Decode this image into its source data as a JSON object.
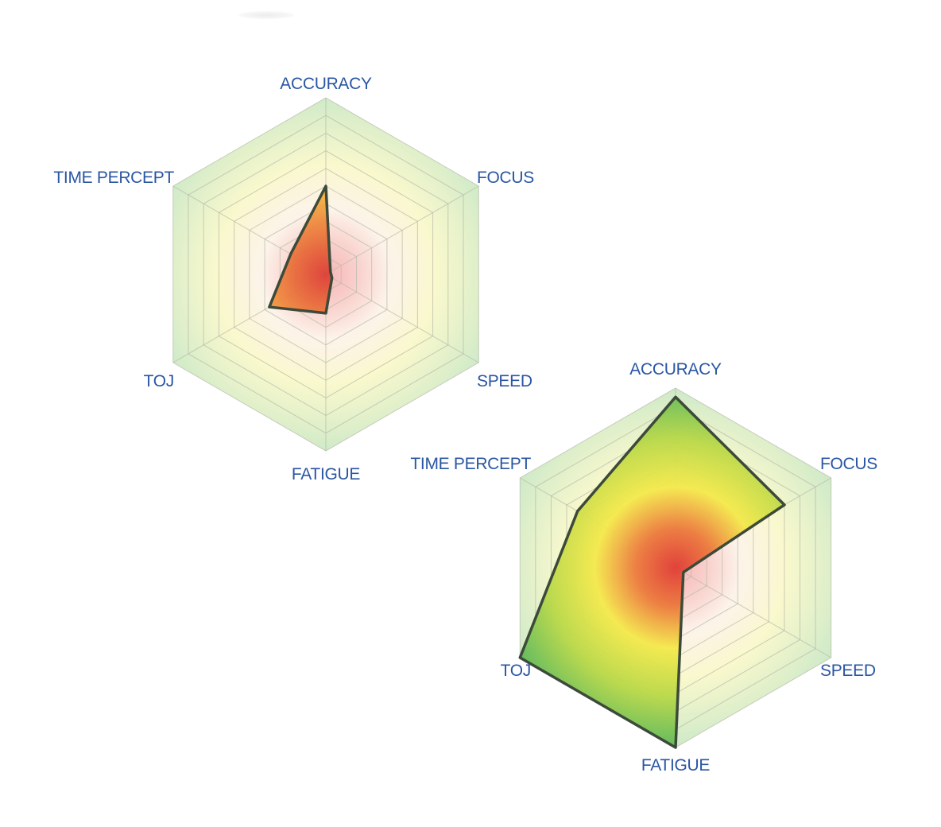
{
  "chart_data": [
    {
      "type": "radar",
      "title": "",
      "axes": [
        "ACCURACY",
        "FOCUS",
        "SPEED",
        "FATIGUE",
        "TOJ",
        "TIME PERCEPT"
      ],
      "rlim": [
        0,
        10
      ],
      "rings": 10,
      "grid": true,
      "series": [
        {
          "values": [
            5.0,
            0.3,
            0.4,
            2.2,
            3.7,
            2.3
          ]
        }
      ],
      "colors": {
        "fill_center": "#e0483a",
        "fill_mid": "#f4e94c",
        "fill_outer": "#5fbf5f",
        "outline": "#3d4a3a",
        "grid": "#b7b9a8",
        "label": "#2a56a3"
      }
    },
    {
      "type": "radar",
      "title": "",
      "axes": [
        "ACCURACY",
        "FOCUS",
        "SPEED",
        "FATIGUE",
        "TOJ",
        "TIME PERCEPT"
      ],
      "rlim": [
        0,
        10
      ],
      "rings": 10,
      "grid": true,
      "series": [
        {
          "values": [
            9.5,
            7.0,
            0.5,
            10.0,
            10.0,
            6.3
          ]
        }
      ],
      "colors": {
        "fill_center": "#e0483a",
        "fill_mid": "#f4e94c",
        "fill_outer": "#5fbf5f",
        "outline": "#3d4a3a",
        "grid": "#b7b9a8",
        "label": "#2a56a3"
      }
    }
  ]
}
